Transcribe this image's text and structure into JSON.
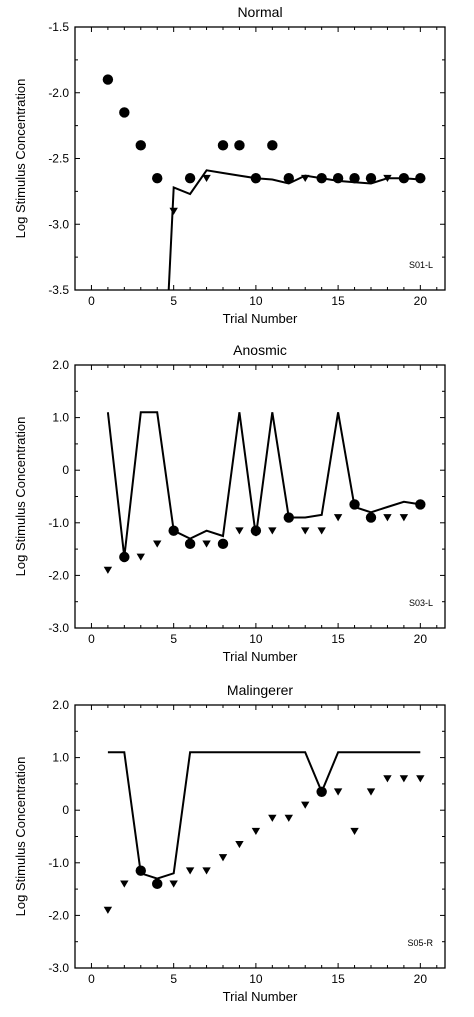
{
  "figure": {
    "marker_color": "#000000",
    "line_color": "#000000",
    "background": "#ffffff"
  },
  "chart_data": [
    {
      "type": "scatter",
      "title": "Normal",
      "xlabel": "Trial Number",
      "ylabel": "Log Stimulus Concentration",
      "tag": "S01-L",
      "xlim": [
        -1,
        21.5
      ],
      "ylim": [
        -3.5,
        -1.5
      ],
      "xticks": [
        0,
        5,
        10,
        15,
        20
      ],
      "yticks": [
        -3.5,
        -3.0,
        -2.5,
        -2.0,
        -1.5
      ],
      "ytick_labels": [
        "-3.5",
        "-3.0",
        "-2.5",
        "-2.0",
        "-1.5"
      ],
      "xtick_labels": [
        "0",
        "5",
        "10",
        "15",
        "20"
      ],
      "grid": false,
      "line": {
        "x": [
          4.7,
          5,
          6,
          7,
          8,
          9,
          10,
          11,
          12,
          13,
          14,
          15,
          16,
          17,
          18,
          19,
          20
        ],
        "y": [
          -3.5,
          -2.72,
          -2.77,
          -2.59,
          -2.61,
          -2.63,
          -2.65,
          -2.66,
          -2.69,
          -2.63,
          -2.65,
          -2.67,
          -2.68,
          -2.69,
          -2.65,
          -2.65,
          -2.66
        ]
      },
      "circles": {
        "x": [
          1,
          2,
          3,
          4,
          6,
          8,
          9,
          10,
          11,
          12,
          14,
          15,
          16,
          17,
          19,
          20
        ],
        "y": [
          -1.9,
          -2.15,
          -2.4,
          -2.65,
          -2.65,
          -2.4,
          -2.4,
          -2.65,
          -2.4,
          -2.65,
          -2.65,
          -2.65,
          -2.65,
          -2.65,
          -2.65,
          -2.65
        ]
      },
      "triangles": {
        "x": [
          5,
          7,
          13,
          18
        ],
        "y": [
          -2.9,
          -2.65,
          -2.65,
          -2.65
        ]
      }
    },
    {
      "type": "scatter",
      "title": "Anosmic",
      "xlabel": "Trial Number",
      "ylabel": "Log Stimulus Concentration",
      "tag": "S03-L",
      "xlim": [
        -1,
        21.5
      ],
      "ylim": [
        -3.0,
        2.0
      ],
      "xticks": [
        0,
        5,
        10,
        15,
        20
      ],
      "yticks": [
        -3.0,
        -2.0,
        -1.0,
        0,
        1.0,
        2.0
      ],
      "ytick_labels": [
        "-3.0",
        "-2.0",
        "-1.0",
        "0",
        "1.0",
        "2.0"
      ],
      "xtick_labels": [
        "0",
        "5",
        "10",
        "15",
        "20"
      ],
      "grid": false,
      "line": {
        "x": [
          1,
          2,
          3,
          4,
          5,
          6,
          7,
          8,
          9,
          10,
          11,
          12,
          13,
          14,
          15,
          16,
          17,
          18,
          19,
          20
        ],
        "y": [
          1.1,
          -1.65,
          1.1,
          1.1,
          -1.15,
          -1.3,
          -1.15,
          -1.25,
          1.1,
          -1.25,
          1.1,
          -0.9,
          -0.9,
          -0.85,
          1.1,
          -0.7,
          -0.8,
          -0.7,
          -0.6,
          -0.65
        ]
      },
      "circles": {
        "x": [
          2,
          5,
          6,
          8,
          10,
          12,
          16,
          17,
          20
        ],
        "y": [
          -1.65,
          -1.15,
          -1.4,
          -1.4,
          -1.15,
          -0.9,
          -0.65,
          -0.9,
          -0.65
        ]
      },
      "triangles": {
        "x": [
          1,
          3,
          4,
          7,
          9,
          11,
          13,
          14,
          15,
          18,
          19
        ],
        "y": [
          -1.9,
          -1.65,
          -1.4,
          -1.4,
          -1.15,
          -1.15,
          -1.15,
          -1.15,
          -0.9,
          -0.9,
          -0.9
        ]
      }
    },
    {
      "type": "scatter",
      "title": "Malingerer",
      "xlabel": "Trial Number",
      "ylabel": "Log Stimulus Concentration",
      "tag": "S05-R",
      "xlim": [
        -1,
        21.5
      ],
      "ylim": [
        -3.0,
        2.0
      ],
      "xticks": [
        0,
        5,
        10,
        15,
        20
      ],
      "yticks": [
        -3.0,
        -2.0,
        -1.0,
        0,
        1.0,
        2.0
      ],
      "ytick_labels": [
        "-3.0",
        "-2.0",
        "-1.0",
        "0",
        "1.0",
        "2.0"
      ],
      "xtick_labels": [
        "0",
        "5",
        "10",
        "15",
        "20"
      ],
      "grid": false,
      "line": {
        "x": [
          1,
          2,
          3,
          4,
          5,
          6,
          7,
          8,
          9,
          10,
          11,
          12,
          13,
          14,
          15,
          16,
          17,
          18,
          19,
          20
        ],
        "y": [
          1.1,
          1.1,
          -1.2,
          -1.3,
          -1.2,
          1.1,
          1.1,
          1.1,
          1.1,
          1.1,
          1.1,
          1.1,
          1.1,
          0.35,
          1.1,
          1.1,
          1.1,
          1.1,
          1.1,
          1.1
        ]
      },
      "circles": {
        "x": [
          3,
          4,
          14
        ],
        "y": [
          -1.15,
          -1.4,
          0.35
        ]
      },
      "triangles": {
        "x": [
          1,
          2,
          5,
          6,
          7,
          8,
          9,
          10,
          11,
          12,
          13,
          15,
          16,
          17,
          18,
          19,
          20
        ],
        "y": [
          -1.9,
          -1.4,
          -1.4,
          -1.15,
          -1.15,
          -0.9,
          -0.65,
          -0.4,
          -0.15,
          -0.15,
          0.1,
          0.35,
          -0.4,
          0.35,
          0.6,
          0.6,
          0.6
        ]
      }
    }
  ]
}
